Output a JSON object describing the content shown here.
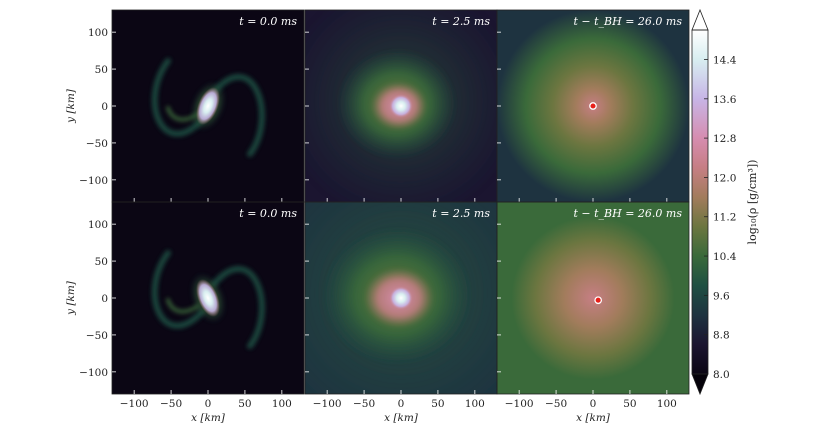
{
  "chart_data": {
    "type": "heatmap",
    "title": "",
    "colorbar": {
      "label": "log₁₀(ρ [g/cm³])",
      "ticks": [
        8.0,
        8.8,
        9.6,
        10.4,
        11.2,
        12.0,
        12.8,
        13.6,
        14.4
      ],
      "tick_labels": [
        "8.0",
        "8.8",
        "9.6",
        "10.4",
        "11.2",
        "12.0",
        "12.8",
        "13.6",
        "14.4"
      ],
      "range": [
        8.0,
        15.0
      ],
      "extend": "both",
      "colormap": "cubehelix"
    },
    "axes": {
      "xlabel": "x [km]",
      "ylabel": "y [km]",
      "xlim": [
        -130,
        130
      ],
      "ylim": [
        -130,
        130
      ],
      "xticks": [
        -100,
        -50,
        0,
        50,
        100
      ],
      "yticks": [
        -100,
        -50,
        0,
        50,
        100
      ],
      "xtick_labels": [
        "−100",
        "−50",
        "0",
        "50",
        "100"
      ],
      "ytick_labels": [
        "−100",
        "−50",
        "0",
        "50",
        "100"
      ]
    },
    "panels": [
      {
        "row": 0,
        "col": 0,
        "label": "t  =  0.0 ms",
        "state": "merger",
        "variant": "a"
      },
      {
        "row": 0,
        "col": 1,
        "label": "t  =  2.5 ms",
        "state": "remnant",
        "variant": "a"
      },
      {
        "row": 0,
        "col": 2,
        "label": "t − t_BH  =  26.0 ms",
        "state": "black-hole-disk",
        "variant": "a",
        "bh_x": 0,
        "bh_y": 0
      },
      {
        "row": 1,
        "col": 0,
        "label": "t  =  0.0 ms",
        "state": "merger",
        "variant": "b"
      },
      {
        "row": 1,
        "col": 1,
        "label": "t  =  2.5 ms",
        "state": "remnant",
        "variant": "b"
      },
      {
        "row": 1,
        "col": 2,
        "label": "t − t_BH  =  26.0 ms",
        "state": "black-hole-disk",
        "variant": "b",
        "bh_x": 7,
        "bh_y": -3
      }
    ]
  }
}
